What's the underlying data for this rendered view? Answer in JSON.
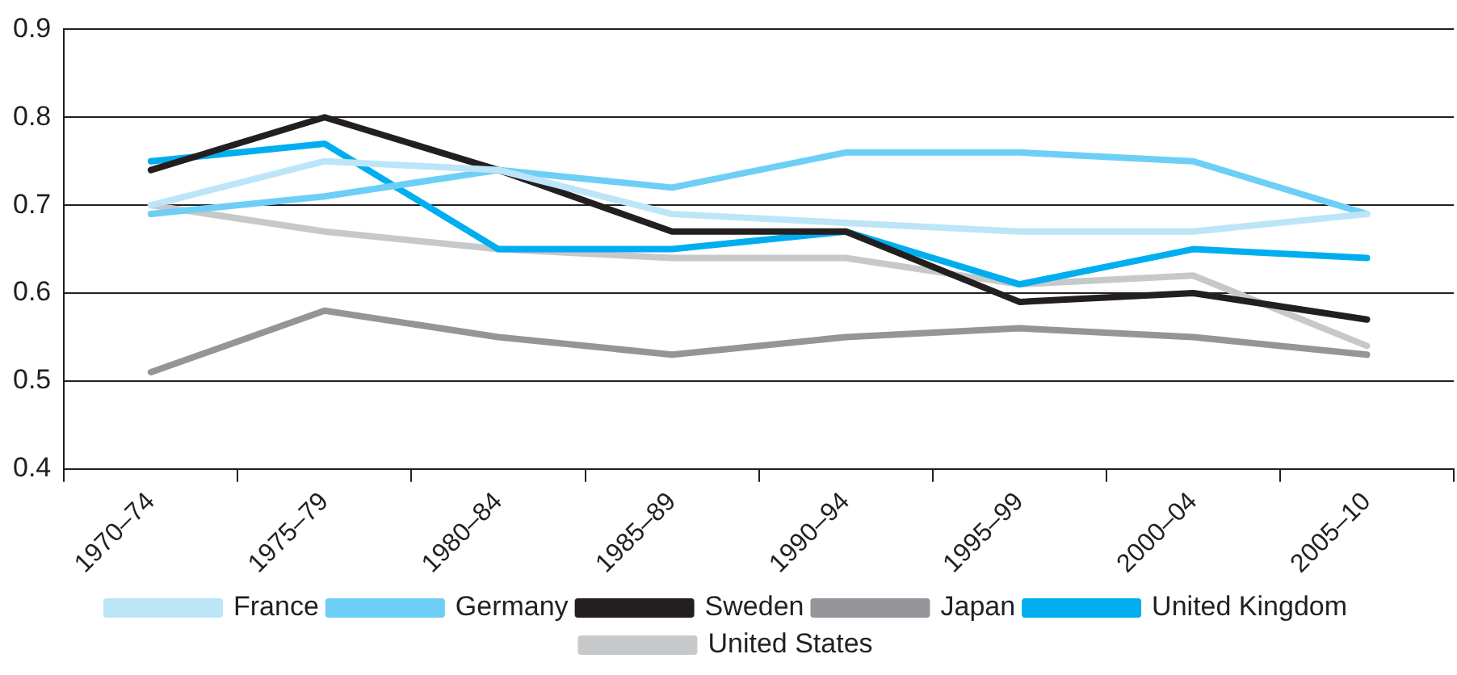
{
  "chart_data": {
    "type": "line",
    "categories": [
      "1970–74",
      "1975–79",
      "1980–84",
      "1985–89",
      "1990–94",
      "1995–99",
      "2000–04",
      "2005–10"
    ],
    "series": [
      {
        "name": "France",
        "color": "#bde5f8",
        "values": [
          0.7,
          0.75,
          0.74,
          0.69,
          0.68,
          0.67,
          0.67,
          0.69
        ]
      },
      {
        "name": "Germany",
        "color": "#6dcff6",
        "values": [
          0.69,
          0.71,
          0.74,
          0.72,
          0.76,
          0.76,
          0.75,
          0.69
        ]
      },
      {
        "name": "Sweden",
        "color": "#231f20",
        "values": [
          0.74,
          0.8,
          0.74,
          0.67,
          0.67,
          0.59,
          0.6,
          0.57
        ]
      },
      {
        "name": "Japan",
        "color": "#939598",
        "values": [
          0.51,
          0.58,
          0.55,
          0.53,
          0.55,
          0.56,
          0.55,
          0.53
        ]
      },
      {
        "name": "United Kingdom",
        "color": "#00aeef",
        "values": [
          0.75,
          0.77,
          0.65,
          0.65,
          0.67,
          0.61,
          0.65,
          0.64
        ]
      },
      {
        "name": "United States",
        "color": "#c7c8ca",
        "values": [
          0.7,
          0.67,
          0.65,
          0.64,
          0.64,
          0.61,
          0.62,
          0.54
        ]
      }
    ],
    "ylim": [
      0.4,
      0.9
    ],
    "yticks": [
      0.4,
      0.5,
      0.6,
      0.7,
      0.8,
      0.9
    ],
    "grid": "y",
    "legend": "bottom",
    "marker": "none",
    "line_style": "solid"
  }
}
